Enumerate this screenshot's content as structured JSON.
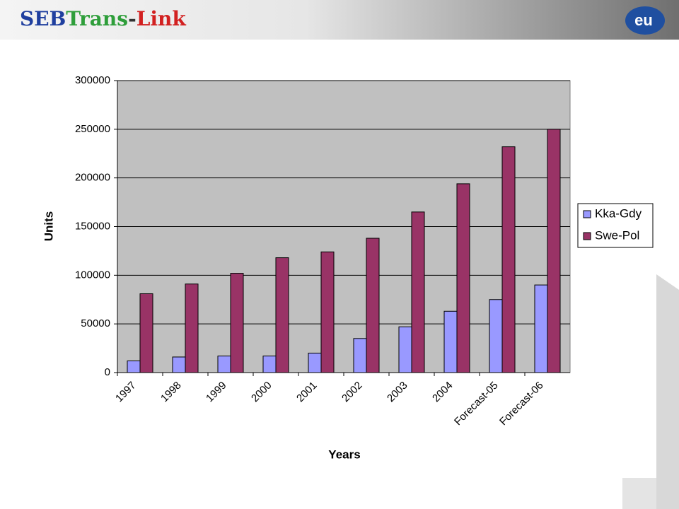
{
  "header": {
    "logo": [
      "SEB",
      "Trans",
      "-",
      "Link"
    ],
    "badge": "eu"
  },
  "chart_data": {
    "type": "bar",
    "x_label": "Years",
    "y_label": "Units",
    "categories": [
      "1997",
      "1998",
      "1999",
      "2000",
      "2001",
      "2002",
      "2003",
      "2004",
      "Forecast-05",
      "Forecast-06"
    ],
    "series": [
      {
        "name": "Kka-Gdy",
        "color": "#9999ff",
        "values": [
          12000,
          16000,
          17000,
          17000,
          20000,
          35000,
          47000,
          63000,
          75000,
          90000
        ]
      },
      {
        "name": "Swe-Pol",
        "color": "#993366",
        "values": [
          81000,
          91000,
          102000,
          118000,
          124000,
          138000,
          165000,
          194000,
          232000,
          250000
        ]
      }
    ],
    "ylim": [
      0,
      300000
    ],
    "yticks": [
      0,
      50000,
      100000,
      150000,
      200000,
      250000,
      300000
    ],
    "grid": true,
    "legend": "right",
    "plot_background": "#c0c0c0"
  }
}
